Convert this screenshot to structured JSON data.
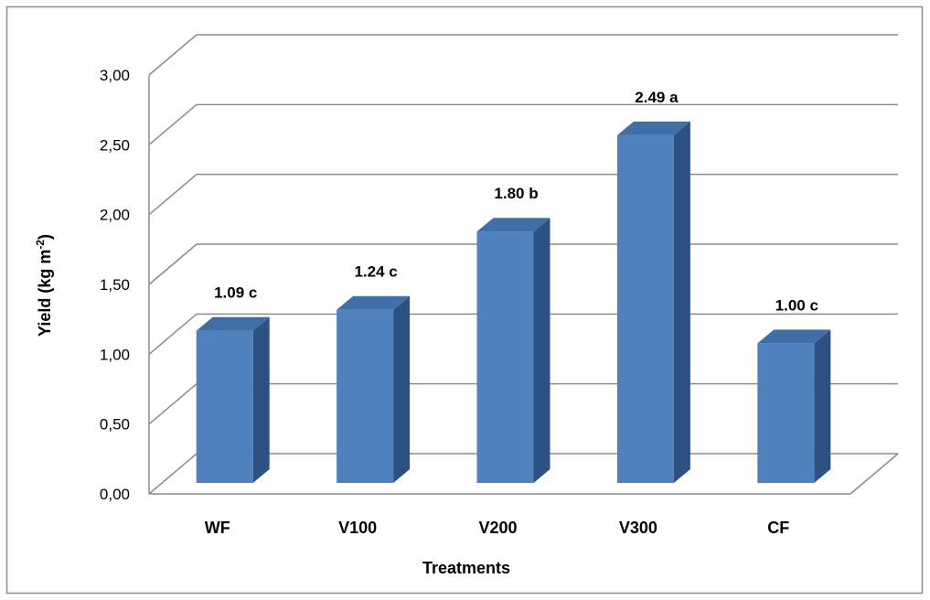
{
  "chart_data": {
    "type": "bar",
    "title": "",
    "xlabel": "Treatments",
    "ylabel_main": "Yield (kg m",
    "ylabel_sup": "-2",
    "ylabel_end": ")",
    "categories": [
      "WF",
      "V100",
      "V200",
      "V300",
      "CF"
    ],
    "values": [
      1.09,
      1.24,
      1.8,
      2.49,
      1.0
    ],
    "data_labels": [
      "1.09 c",
      "1.24 c",
      "1.80 b",
      "2.49 a",
      "1.00 c"
    ],
    "ylim": [
      0,
      3
    ],
    "yticks": [
      0,
      0.5,
      1,
      1.5,
      2,
      2.5,
      3
    ],
    "ytick_labels": [
      "0,00",
      "0,50",
      "1,00",
      "1,50",
      "2,00",
      "2,50",
      "3,00"
    ],
    "grid": true,
    "legend": "none",
    "style": "3d-column",
    "colors": {
      "bar_front": "#4F81BD",
      "bar_top": "#3F6FA6",
      "bar_side": "#2E5183",
      "grid": "#8C8C8C",
      "frame_border": "#8C8C8C"
    }
  }
}
